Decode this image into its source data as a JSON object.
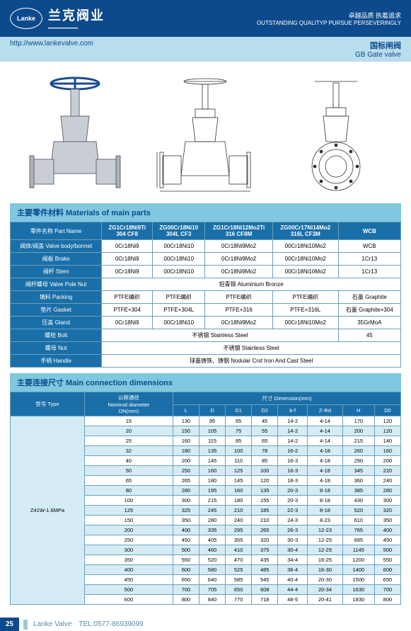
{
  "header": {
    "logo_text": "Lanke",
    "brand_cn": "兰克阀业",
    "brand_line": "━━━━━━━━━━",
    "tagline_cn": "卓越品质 执着追求",
    "tagline_en": "OUTSTANDING QUALITYP PURSUE PERSEVERINGLY"
  },
  "subheader": {
    "url": "http://www.lankevalve.com",
    "title_cn": "国标闸阀",
    "title_en": "GB Gate valve"
  },
  "section1_title": "主要零件材料 Materials of main parts",
  "materials": {
    "head": [
      "零件名称 Part Name",
      "ZG1Cr18Ni9Ti\n304    CF8",
      "ZG00Cr18Ni10\n304L    CF3",
      "ZG1Cr18Ni12Mo2Ti\n316    CF8M",
      "ZG00Cr17Ni14Mo2\n316L    CF3M",
      "WCB"
    ],
    "rows": [
      [
        "阀体/阀盖 Valve body/bonnet",
        "0Cr18Ni9",
        "00Cr18Ni10",
        "0Cr18Ni9Mo2",
        "00Cr18Ni10Mo2",
        "WCB"
      ],
      [
        "阀板 Brake",
        "0Cr18Ni9",
        "00Cr18Ni10",
        "0Cr18Ni9Mo2",
        "00Cr18Ni10Mo2",
        "1Cr13"
      ],
      [
        "阀杆 Stem",
        "0Cr18Ni9",
        "00Cr18Ni10",
        "0Cr18Ni9Mo2",
        "00Cr18Ni10Mo2",
        "1Cr13"
      ]
    ],
    "merged": [
      [
        "阀杆螺母 Valve Pole Nut",
        "铝青铜 Aluminium Bronze"
      ],
      [
        "填料 Packing",
        "PTFE编织",
        "PTFE编织",
        "PTFE编织",
        "PTFE编织",
        "石墨 Graphite"
      ],
      [
        "垫片 Gasket",
        "PTFE+304",
        "PTFE+304L",
        "PTFE+316",
        "PTFE+316L",
        "石墨 Graphite+304"
      ],
      [
        "压盖 Gland",
        "0Cr18Ni9",
        "00Cr18Ni10",
        "0Cr18Ni9Mo2",
        "00Cr18Ni10Mo2",
        "35GrMoA"
      ],
      [
        "螺栓 Bolt",
        "不锈钢 Stainless Steel",
        "45"
      ],
      [
        "螺母 Nut",
        "不锈钢 Stainless Steel"
      ],
      [
        "手柄 Handle",
        "球墨铸铁、铸钢 Nodular Crst Iron And Cast Steel"
      ]
    ]
  },
  "section2_title": "主要连接尺寸 Main connection dimensions",
  "dims": {
    "group_head": "尺寸 Dimension(mm)",
    "type_head": "型号 Type",
    "dn_head": "公称通径\nNominal diameter\nDN(mm)",
    "cols": [
      "L",
      "D",
      "D1",
      "D2",
      "b-f",
      "Z-Φd",
      "H",
      "D0"
    ],
    "type_value": "Z41W-1.6MPa",
    "rows": [
      [
        "15",
        "130",
        "95",
        "65",
        "45",
        "14-2",
        "4-14",
        "170",
        "120"
      ],
      [
        "20",
        "150",
        "105",
        "75",
        "55",
        "14-2",
        "4-14",
        "200",
        "120"
      ],
      [
        "25",
        "160",
        "115",
        "85",
        "65",
        "14-2",
        "4-14",
        "215",
        "140"
      ],
      [
        "32",
        "180",
        "135",
        "100",
        "78",
        "16-2",
        "4-18",
        "260",
        "160"
      ],
      [
        "40",
        "200",
        "145",
        "110",
        "85",
        "16-3",
        "4-18",
        "290",
        "200"
      ],
      [
        "50",
        "250",
        "160",
        "125",
        "100",
        "16-3",
        "4-18",
        "345",
        "220"
      ],
      [
        "65",
        "265",
        "180",
        "145",
        "120",
        "18-3",
        "4-18",
        "360",
        "240"
      ],
      [
        "80",
        "280",
        "195",
        "160",
        "135",
        "20-3",
        "8-18",
        "385",
        "280"
      ],
      [
        "100",
        "300",
        "215",
        "180",
        "155",
        "20-3",
        "8-18",
        "430",
        "300"
      ],
      [
        "125",
        "325",
        "245",
        "210",
        "185",
        "22-3",
        "8-18",
        "520",
        "320"
      ],
      [
        "150",
        "350",
        "280",
        "240",
        "210",
        "24-3",
        "8-23",
        "610",
        "350"
      ],
      [
        "200",
        "400",
        "335",
        "295",
        "265",
        "26-3",
        "12-23",
        "765",
        "400"
      ],
      [
        "250",
        "450",
        "405",
        "355",
        "320",
        "30-3",
        "12-25",
        "895",
        "450"
      ],
      [
        "300",
        "500",
        "460",
        "410",
        "375",
        "30-4",
        "12-25",
        "1145",
        "500"
      ],
      [
        "350",
        "550",
        "520",
        "470",
        "435",
        "34-4",
        "16-25",
        "1200",
        "550"
      ],
      [
        "400",
        "600",
        "580",
        "525",
        "485",
        "36-4",
        "16-30",
        "1400",
        "600"
      ],
      [
        "450",
        "650",
        "640",
        "585",
        "545",
        "40-4",
        "20-30",
        "1500",
        "650"
      ],
      [
        "500",
        "700",
        "705",
        "650",
        "608",
        "44-4",
        "20-34",
        "1630",
        "700"
      ],
      [
        "600",
        "800",
        "840",
        "770",
        "718",
        "48-5",
        "20-41",
        "1830",
        "800"
      ]
    ]
  },
  "footer": {
    "page": "25",
    "brand": "Lanke Valve",
    "tel": "TEL:0577-86939099"
  }
}
